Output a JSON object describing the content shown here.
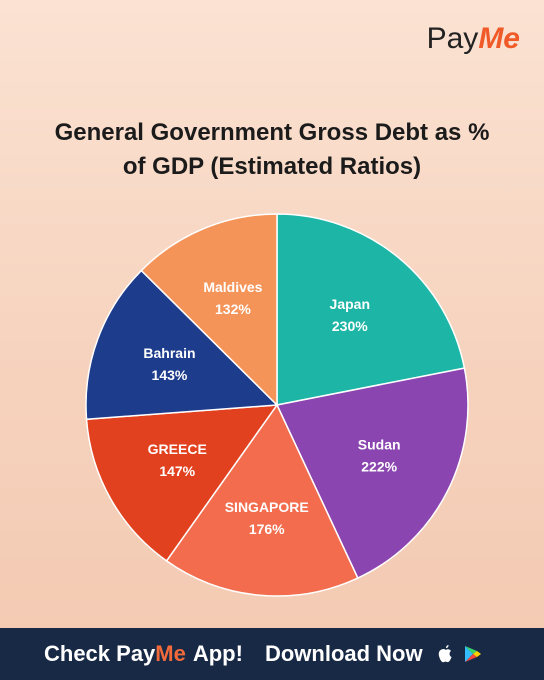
{
  "brand": {
    "first": "Pay",
    "second": "Me"
  },
  "chart_data": {
    "type": "pie",
    "title": "General Government Gross Debt as % of GDP (Estimated Ratios)",
    "categories": [
      "Japan",
      "Sudan",
      "SINGAPORE",
      "GREECE",
      "Bahrain",
      "Maldives"
    ],
    "values": [
      230,
      222,
      176,
      147,
      143,
      132
    ],
    "value_labels": [
      "230%",
      "222%",
      "176%",
      "147%",
      "143%",
      "132%"
    ],
    "colors": [
      "#1db5a5",
      "#8b45b0",
      "#f26c4d",
      "#e1411f",
      "#1e3c8c",
      "#f59459"
    ]
  },
  "footer": {
    "cta_start": "Check Pay",
    "cta_brand": "Me",
    "cta_end": "App!",
    "download": "Download Now"
  }
}
